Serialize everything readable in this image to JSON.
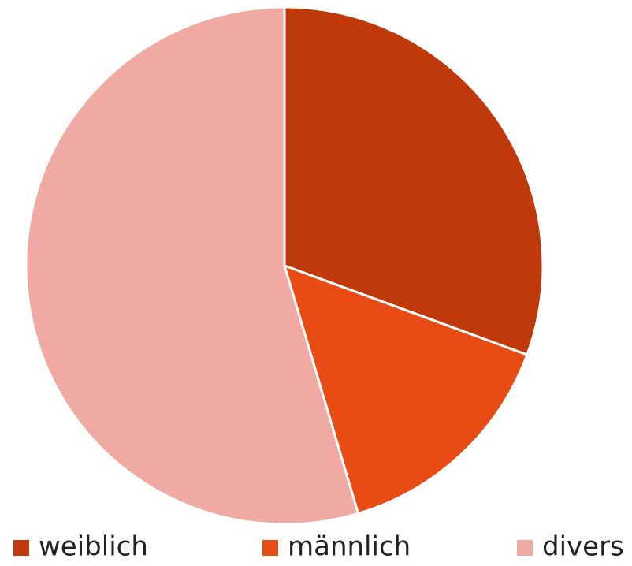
{
  "chart_data": {
    "type": "pie",
    "categories": [
      "weiblich",
      "männlich",
      "divers"
    ],
    "values": [
      30.6,
      14.8,
      54.6
    ],
    "colors": [
      "#c0390b",
      "#e84c14",
      "#f0aaa3"
    ],
    "legend": "bottom"
  }
}
